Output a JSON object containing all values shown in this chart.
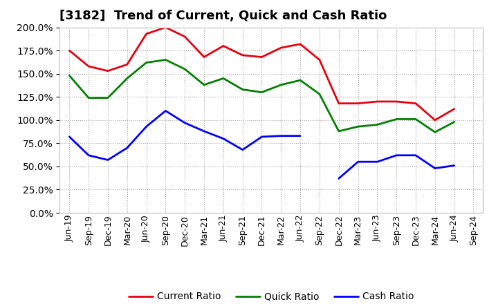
{
  "title": "[3182]  Trend of Current, Quick and Cash Ratio",
  "labels": [
    "Jun-19",
    "Sep-19",
    "Dec-19",
    "Mar-20",
    "Jun-20",
    "Sep-20",
    "Dec-20",
    "Mar-21",
    "Jun-21",
    "Sep-21",
    "Dec-21",
    "Mar-22",
    "Jun-22",
    "Sep-22",
    "Dec-22",
    "Mar-23",
    "Jun-23",
    "Sep-23",
    "Dec-23",
    "Mar-24",
    "Jun-24",
    "Sep-24"
  ],
  "current_ratio": [
    175,
    158,
    153,
    160,
    193,
    200,
    190,
    168,
    180,
    170,
    168,
    178,
    182,
    165,
    118,
    118,
    120,
    120,
    118,
    100,
    112,
    null
  ],
  "quick_ratio": [
    148,
    124,
    124,
    145,
    162,
    165,
    155,
    138,
    145,
    133,
    130,
    138,
    143,
    128,
    88,
    93,
    95,
    101,
    101,
    87,
    98,
    null
  ],
  "cash_ratio": [
    82,
    62,
    57,
    70,
    93,
    110,
    97,
    88,
    80,
    68,
    82,
    83,
    83,
    null,
    37,
    55,
    55,
    62,
    62,
    48,
    51,
    null
  ],
  "current_color": "#e8000d",
  "quick_color": "#008000",
  "cash_color": "#0000ff",
  "background_color": "#ffffff",
  "grid_color": "#aaaaaa",
  "ylim": [
    0,
    200
  ],
  "ytick_interval": 25,
  "line_width": 2.0,
  "title_fontsize": 13,
  "tick_fontsize": 10,
  "legend_fontsize": 10
}
